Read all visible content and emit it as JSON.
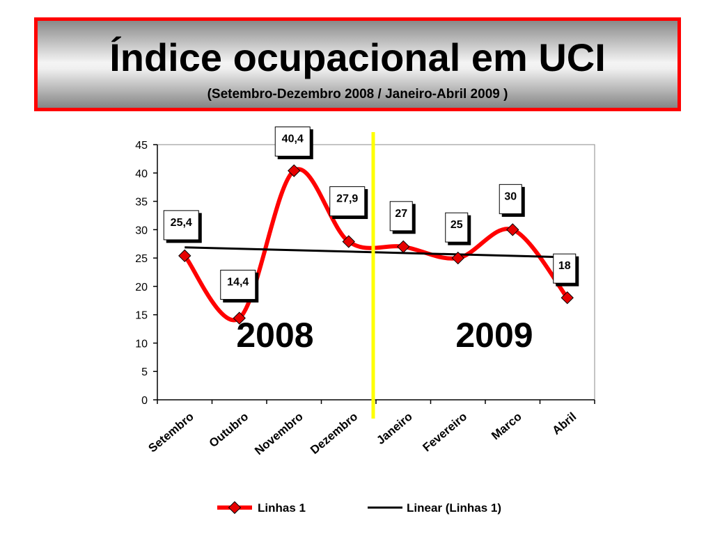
{
  "header": {
    "title": "Índice ocupacional em UCI",
    "subtitle": "(Setembro-Dezembro 2008 / Janeiro-Abril 2009 )"
  },
  "chart_data": {
    "type": "line",
    "categories": [
      "Setembro",
      "Outubro",
      "Novembro",
      "Dezembro",
      "Janeiro",
      "Fevereiro",
      "Marco",
      "Abril"
    ],
    "series": [
      {
        "name": "Linhas 1",
        "values": [
          25.4,
          14.4,
          40.4,
          27.9,
          27,
          25,
          30,
          18
        ],
        "color": "#ff0000",
        "marker_color": "#e60000"
      }
    ],
    "data_labels": [
      "25,4",
      "14,4",
      "40,4",
      "27,9",
      "27",
      "25",
      "30",
      "18"
    ],
    "trendline": {
      "name": "Linear (Linhas 1)",
      "type": "linear",
      "color": "#000000"
    },
    "y_ticks": [
      "0",
      "5",
      "10",
      "15",
      "20",
      "25",
      "30",
      "35",
      "40",
      "45"
    ],
    "ylim": [
      0,
      45
    ],
    "annotations": {
      "left_year": "2008",
      "right_year": "2009"
    },
    "divider_color": "#ffff00",
    "legend": {
      "position": "bottom"
    },
    "grid": false
  }
}
